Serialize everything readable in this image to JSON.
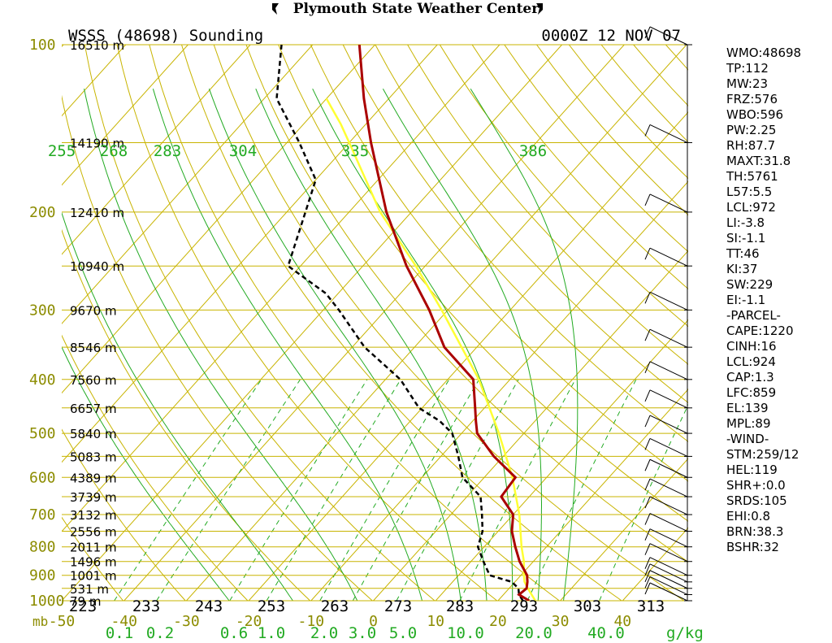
{
  "header": {
    "center_title": "Plymouth State Weather Center",
    "station_title": "WSSS (48698) Sounding",
    "time_title": "0000Z 12 NOV 07"
  },
  "colors": {
    "isobar": "#c8b400",
    "isotherm": "#c8b400",
    "dry_adiabat": "#c8b400",
    "moist_adiabat": "#22aa22",
    "mixing_ratio": "#22aa22",
    "temperature": "#aa0000",
    "dewpoint": "#000000",
    "parcel": "#ffff33",
    "wind_barb": "#000000"
  },
  "chart_data": {
    "type": "line",
    "subtype": "skew-T log-P sounding",
    "x_axis": {
      "unit_label": "mb",
      "range_c": [
        -50,
        40
      ],
      "ticks": [
        "-50",
        "-40",
        "-30",
        "-20",
        "-10",
        "0",
        "10",
        "20",
        "30",
        "40"
      ]
    },
    "y_axis": {
      "scale": "log",
      "range_mb": [
        1000,
        100
      ],
      "pressure_levels": [
        "100",
        "200",
        "300",
        "400",
        "500",
        "600",
        "700",
        "800",
        "900",
        "1000"
      ]
    },
    "height_labels": [
      {
        "p": 100,
        "label": "16510 m"
      },
      {
        "p": 150,
        "label": "14190 m"
      },
      {
        "p": 200,
        "label": "12410 m"
      },
      {
        "p": 250,
        "label": "10940 m"
      },
      {
        "p": 300,
        "label": "9670 m"
      },
      {
        "p": 350,
        "label": "8546 m"
      },
      {
        "p": 400,
        "label": "7560 m"
      },
      {
        "p": 450,
        "label": "6657 m"
      },
      {
        "p": 500,
        "label": "5840 m"
      },
      {
        "p": 550,
        "label": "5083 m"
      },
      {
        "p": 600,
        "label": "4389 m"
      },
      {
        "p": 650,
        "label": "3739 m"
      },
      {
        "p": 700,
        "label": "3132 m"
      },
      {
        "p": 750,
        "label": "2556 m"
      },
      {
        "p": 800,
        "label": "2011 m"
      },
      {
        "p": 850,
        "label": "1496 m"
      },
      {
        "p": 900,
        "label": "1001 m"
      },
      {
        "p": 950,
        "label": "531 m"
      },
      {
        "p": 1000,
        "label": "79 m"
      }
    ],
    "theta_e_labels": [
      "255",
      "268",
      "283",
      "304",
      "335",
      "386"
    ],
    "theta_labels": [
      "223",
      "233",
      "243",
      "253",
      "263",
      "273",
      "283",
      "293",
      "303",
      "313"
    ],
    "mixing_ratio_labels": [
      "0.1",
      "0.2",
      "0.6",
      "1.0",
      "2.0",
      "3.0",
      "5.0",
      "10.0",
      "20.0",
      "40.0"
    ],
    "mixing_ratio_unit": "g/kg",
    "temperature": {
      "p": [
        1000,
        975,
        950,
        925,
        900,
        850,
        800,
        750,
        700,
        650,
        600,
        550,
        500,
        475,
        450,
        400,
        350,
        300,
        250,
        200,
        150,
        125,
        100
      ],
      "t": [
        25,
        22.5,
        22.8,
        22,
        21,
        17.8,
        15.0,
        12.2,
        10.0,
        5.5,
        5.0,
        -1.5,
        -7.5,
        -9.5,
        -11.5,
        -15.9,
        -25.2,
        -33.0,
        -43.0,
        -54.0,
        -66.5,
        -74.0,
        -82.5
      ]
    },
    "dewpoint": {
      "p": [
        1000,
        975,
        950,
        925,
        900,
        850,
        800,
        750,
        700,
        650,
        600,
        550,
        500,
        475,
        450,
        400,
        350,
        300,
        280,
        250,
        200,
        175,
        150,
        125,
        100
      ],
      "t": [
        24.0,
        22.5,
        21.5,
        19.5,
        15.0,
        12.0,
        9.0,
        7.5,
        5.0,
        2.2,
        -3.5,
        -7.2,
        -11.5,
        -15.3,
        -20.5,
        -27.6,
        -38.0,
        -47.5,
        -52.0,
        -62.0,
        -67.0,
        -70.0,
        -78.0,
        -88.0,
        -95.0
      ]
    },
    "parcel": {
      "p": [
        1000,
        950,
        924,
        900,
        850,
        800,
        700,
        600,
        500,
        400,
        300,
        250,
        200,
        150,
        139,
        125
      ],
      "t": [
        26,
        23.0,
        21.5,
        20.5,
        18.5,
        16.0,
        11.0,
        4.5,
        -4.0,
        -15.0,
        -31.0,
        -41.5,
        -55.0,
        -70.0,
        -74.0,
        -80.0
      ]
    },
    "wind_barb_pressures": [
      1000,
      975,
      950,
      925,
      900,
      850,
      800,
      750,
      700,
      650,
      600,
      550,
      500,
      450,
      400,
      350,
      300,
      250,
      200,
      150,
      100
    ],
    "indices": [
      "WMO:48698",
      "TP:112",
      "MW:23",
      "FRZ:576",
      "WBO:596",
      "PW:2.25",
      "RH:87.7",
      "MAXT:31.8",
      "TH:5761",
      "L57:5.5",
      "LCL:972",
      "LI:-3.8",
      "SI:-1.1",
      "TT:46",
      "KI:37",
      "SW:229",
      "EI:-1.1",
      "-PARCEL-",
      "CAPE:1220",
      "CINH:16",
      "LCL:924",
      "CAP:1.3",
      "LFC:859",
      "EL:139",
      "MPL:89",
      "-WIND-",
      "STM:259/12",
      "HEL:119",
      "SHR+:0.0",
      "SRDS:105",
      "EHI:0.8",
      "BRN:38.3",
      "BSHR:32"
    ]
  }
}
